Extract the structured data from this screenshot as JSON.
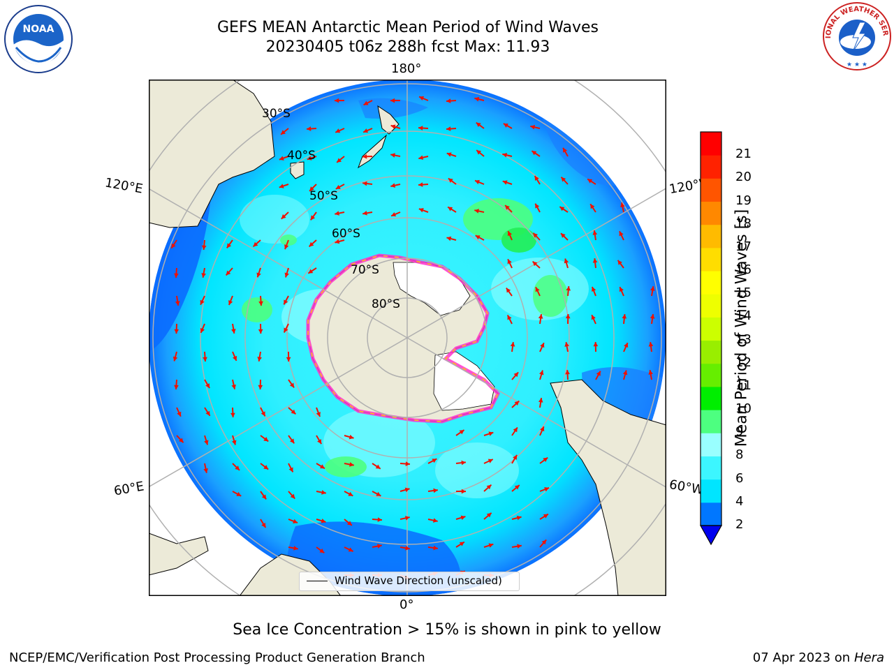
{
  "title": {
    "line1": "GEFS MEAN Antarctic Mean Period of Wind Waves",
    "line2": "20230405 t06z 288h fcst   Max: 11.93"
  },
  "logos": {
    "left": {
      "icon": "noaa-logo-icon",
      "text": "NOAA"
    },
    "right": {
      "icon": "nws-logo-icon",
      "text": "NATIONAL WEATHER SERVICE"
    }
  },
  "map": {
    "projection": "south-polar-stereographic",
    "longitude_labels": {
      "top": "180°",
      "bottom": "0°",
      "upper_left": "120°E",
      "upper_right": "120°W",
      "lower_left": "60°E",
      "lower_right": "60°W"
    },
    "latitude_labels": [
      "30°S",
      "40°S",
      "50°S",
      "60°S",
      "70°S",
      "80°S"
    ],
    "legend": "Wind Wave Direction (unscaled)",
    "colors": {
      "land": "#ecead8",
      "ice_shelf": "#ffffff",
      "sea_ice_edge": [
        "#ff33cc",
        "#ffcc00"
      ],
      "arrow": "#ee1100",
      "grid": "#b0b0b0"
    }
  },
  "colorbar": {
    "label": "Mean Period of Wind Waves [s]",
    "ticks": [
      "2",
      "4",
      "6",
      "8",
      "9",
      "10",
      "11",
      "12",
      "13",
      "14",
      "15",
      "16",
      "17",
      "18",
      "19",
      "20",
      "21"
    ],
    "colors": [
      "#0077ff",
      "#00e5ff",
      "#3cf6ff",
      "#99ffff",
      "#4dff80",
      "#00ee00",
      "#66ee00",
      "#99ee00",
      "#ccff00",
      "#eeff00",
      "#ffff00",
      "#ffdd00",
      "#ffbb00",
      "#ff8800",
      "#ff5500",
      "#ff2200",
      "#ff0000"
    ],
    "under_color": "#0000ee"
  },
  "footer": {
    "caption": "Sea Ice Concentration > 15% is shown in pink to yellow",
    "left": "NCEP/EMC/Verification Post Processing Product Generation Branch",
    "right_date": "07 Apr 2023 on",
    "right_host": "Hera"
  }
}
